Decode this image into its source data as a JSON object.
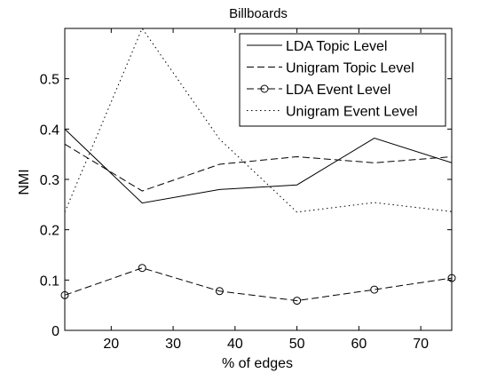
{
  "chart_data": {
    "type": "line",
    "title": "Billboards",
    "xlabel": "% of edges",
    "ylabel": "NMI",
    "xlim": [
      12.5,
      75
    ],
    "ylim": [
      0,
      0.6
    ],
    "x_ticks": [
      20,
      30,
      40,
      50,
      60,
      70
    ],
    "y_ticks": [
      0,
      0.1,
      0.2,
      0.3,
      0.4,
      0.5
    ],
    "grid": false,
    "legend_position": "top-right",
    "x": [
      12.5,
      25,
      37.5,
      50,
      62.5,
      75
    ],
    "series": [
      {
        "name": "LDA Topic Level",
        "style": "solid",
        "marker": "none",
        "values": [
          0.4,
          0.253,
          0.28,
          0.289,
          0.382,
          0.333
        ]
      },
      {
        "name": "Unigram Topic Level",
        "style": "dashed",
        "marker": "none",
        "values": [
          0.37,
          0.277,
          0.33,
          0.345,
          0.333,
          0.345
        ]
      },
      {
        "name": "LDA Event Level",
        "style": "dashdot",
        "marker": "circle",
        "values": [
          0.07,
          0.124,
          0.078,
          0.059,
          0.081,
          0.104
        ]
      },
      {
        "name": "Unigram Event Level",
        "style": "dotted",
        "marker": "none",
        "values": [
          0.235,
          0.6,
          0.38,
          0.235,
          0.254,
          0.236
        ]
      }
    ],
    "colors": {
      "line": "#000000",
      "background": "#ffffff"
    }
  }
}
